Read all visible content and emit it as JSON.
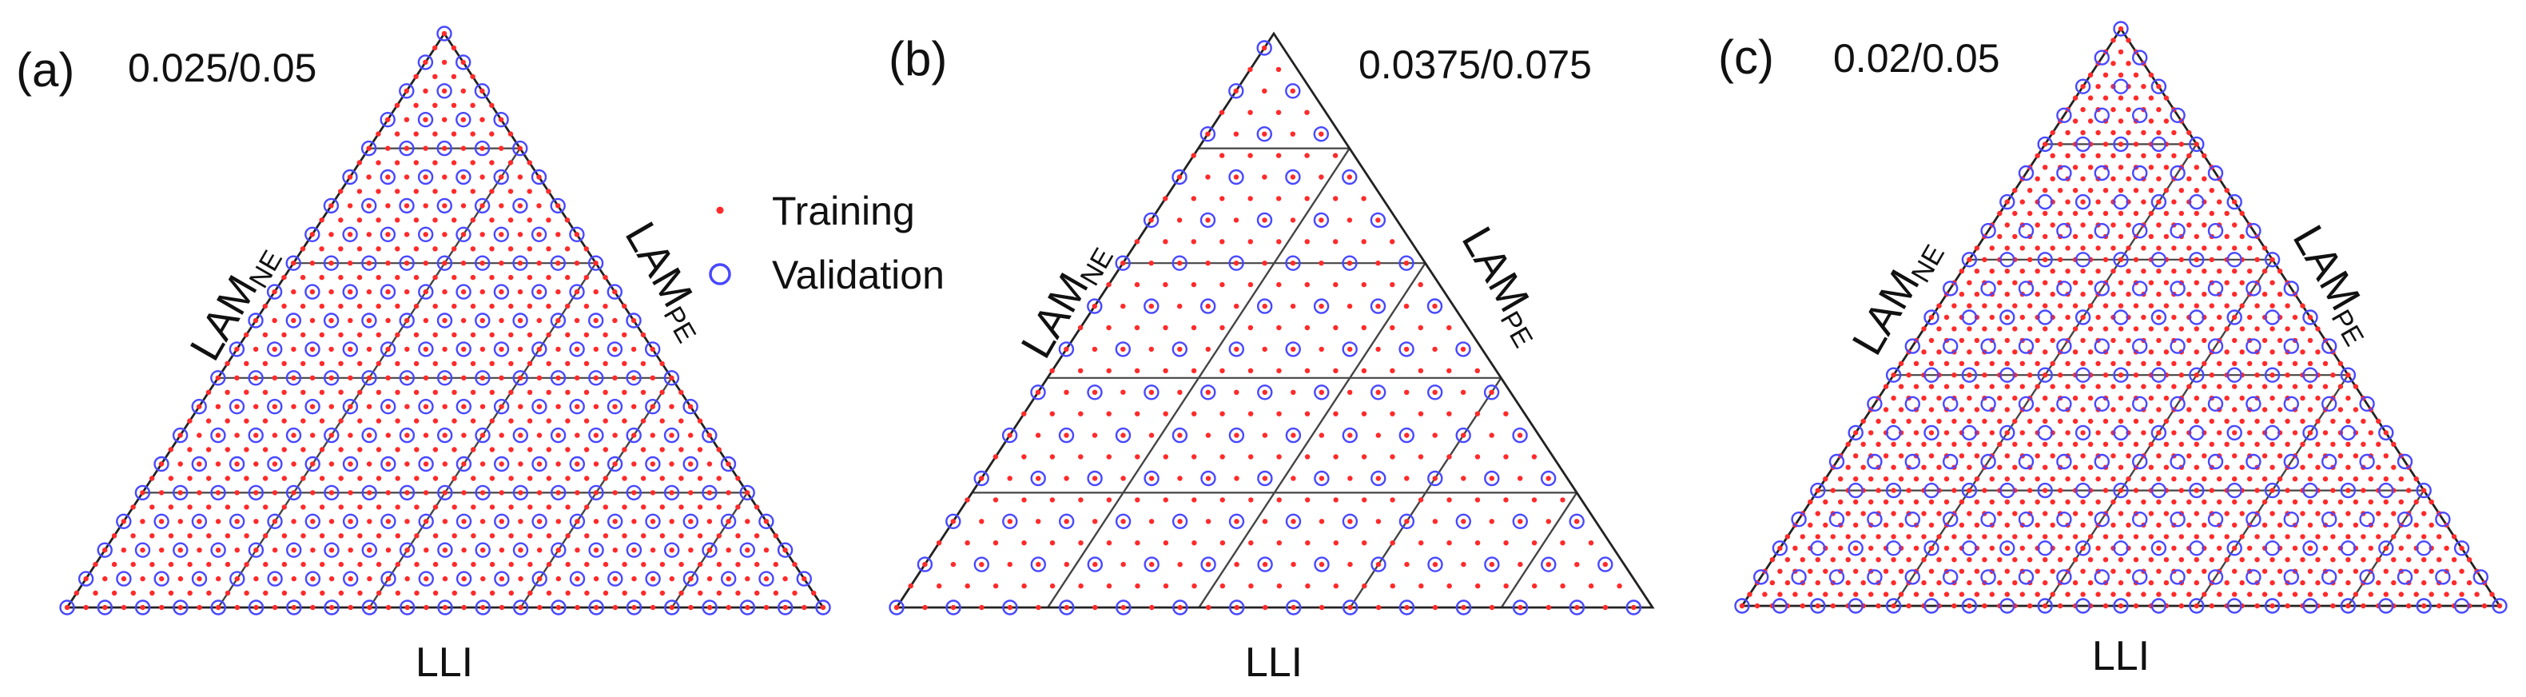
{
  "colors": {
    "training": "#ff2a2a",
    "validation": "#4848ff",
    "frame": "#222222",
    "grid": "#444444",
    "text": "#111111"
  },
  "legend": {
    "training_label": "Training",
    "validation_label": "Validation"
  },
  "chart_data": [
    {
      "type": "scatter",
      "panel": "(a)",
      "subtitle": "0.025/0.05",
      "axes": {
        "left": "LAM",
        "left_sub": "NE",
        "right": "LAM",
        "right_sub": "PE",
        "bottom": "LLI"
      },
      "grid_divisions": 5,
      "training_step": 0.025,
      "validation_step": 0.05,
      "series": [
        {
          "name": "Training",
          "marker": "dot",
          "step": 0.025
        },
        {
          "name": "Validation",
          "marker": "circle",
          "step": 0.05
        }
      ]
    },
    {
      "type": "scatter",
      "panel": "(b)",
      "subtitle": "0.0375/0.075",
      "axes": {
        "left": "LAM",
        "left_sub": "NE",
        "right": "LAM",
        "right_sub": "PE",
        "bottom": "LLI"
      },
      "grid_divisions": 5,
      "training_step": 0.0375,
      "validation_step": 0.075,
      "series": [
        {
          "name": "Training",
          "marker": "dot",
          "step": 0.0375
        },
        {
          "name": "Validation",
          "marker": "circle",
          "step": 0.075
        }
      ]
    },
    {
      "type": "scatter",
      "panel": "(c)",
      "subtitle": "0.02/0.05",
      "axes": {
        "left": "LAM",
        "left_sub": "NE",
        "right": "LAM",
        "right_sub": "PE",
        "bottom": "LLI"
      },
      "grid_divisions": 5,
      "training_step": 0.02,
      "validation_step": 0.05,
      "series": [
        {
          "name": "Training",
          "marker": "dot",
          "step": 0.02
        },
        {
          "name": "Validation",
          "marker": "circle",
          "step": 0.05
        }
      ]
    }
  ]
}
